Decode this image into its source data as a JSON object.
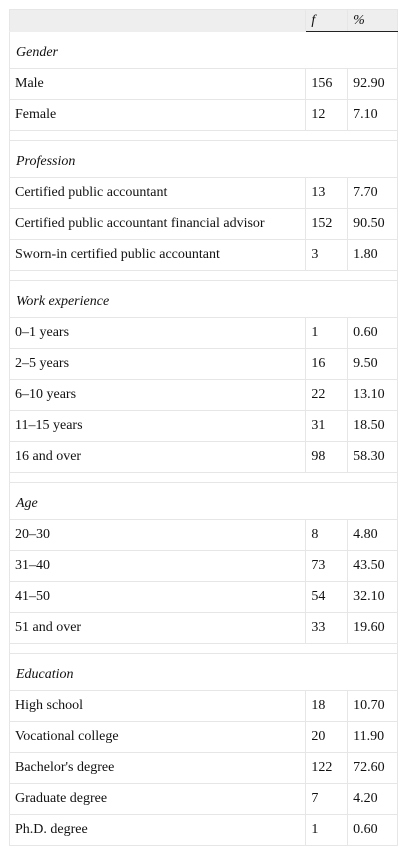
{
  "header": {
    "freq": "f",
    "pct": "%"
  },
  "sections": [
    {
      "title": "Gender",
      "rows": [
        {
          "label": "Male",
          "f": "156",
          "pct": "92.90"
        },
        {
          "label": "Female",
          "f": "12",
          "pct": "7.10"
        }
      ]
    },
    {
      "title": "Profession",
      "rows": [
        {
          "label": "Certified public accountant",
          "f": "13",
          "pct": "7.70"
        },
        {
          "label": "Certified public accountant financial advisor",
          "f": "152",
          "pct": "90.50"
        },
        {
          "label": "Sworn-in certified public accountant",
          "f": "3",
          "pct": "1.80"
        }
      ]
    },
    {
      "title": "Work experience",
      "rows": [
        {
          "label": "0–1 years",
          "f": "1",
          "pct": "0.60"
        },
        {
          "label": "2–5 years",
          "f": "16",
          "pct": "9.50"
        },
        {
          "label": "6–10 years",
          "f": "22",
          "pct": "13.10"
        },
        {
          "label": "11–15 years",
          "f": "31",
          "pct": "18.50"
        },
        {
          "label": "16 and over",
          "f": "98",
          "pct": "58.30"
        }
      ]
    },
    {
      "title": "Age",
      "rows": [
        {
          "label": "20–30",
          "f": "8",
          "pct": "4.80"
        },
        {
          "label": "31–40",
          "f": "73",
          "pct": "43.50"
        },
        {
          "label": "41–50",
          "f": "54",
          "pct": "32.10"
        },
        {
          "label": "51 and over",
          "f": "33",
          "pct": "19.60"
        }
      ]
    },
    {
      "title": "Education",
      "rows": [
        {
          "label": "High school",
          "f": "18",
          "pct": "10.70"
        },
        {
          "label": "Vocational college",
          "f": "20",
          "pct": "11.90"
        },
        {
          "label": "Bachelor's degree",
          "f": "122",
          "pct": "72.60"
        },
        {
          "label": "Graduate degree",
          "f": "7",
          "pct": "4.20"
        },
        {
          "label": "Ph.D. degree",
          "f": "1",
          "pct": "0.60"
        }
      ]
    }
  ]
}
